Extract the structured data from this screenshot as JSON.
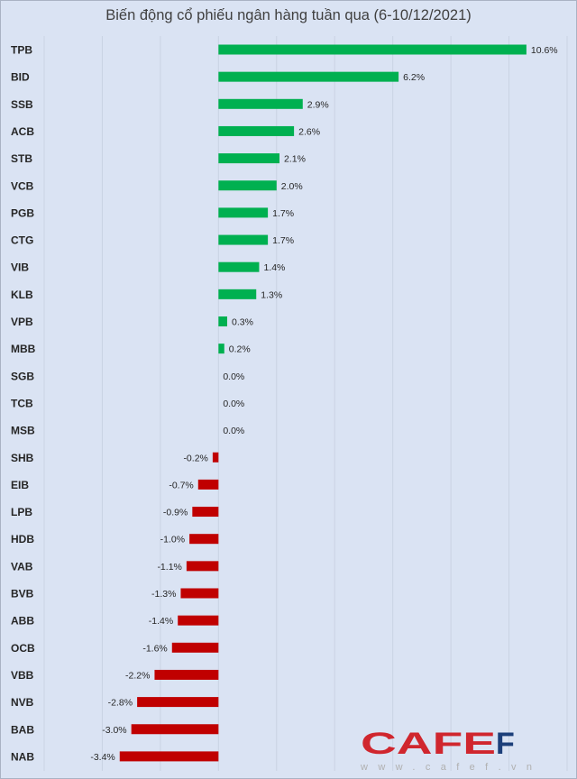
{
  "chart_data": {
    "type": "bar",
    "orientation": "horizontal",
    "title": "Biến động cổ phiếu ngân hàng tuần qua (6-10/12/2021)",
    "xlabel": "",
    "ylabel": "",
    "xlim": [
      -6,
      12
    ],
    "grid": true,
    "legend": "none",
    "categories": [
      "TPB",
      "BID",
      "SSB",
      "ACB",
      "STB",
      "VCB",
      "PGB",
      "CTG",
      "VIB",
      "KLB",
      "VPB",
      "MBB",
      "SGB",
      "TCB",
      "MSB",
      "SHB",
      "EIB",
      "LPB",
      "HDB",
      "VAB",
      "BVB",
      "ABB",
      "OCB",
      "VBB",
      "NVB",
      "BAB",
      "NAB"
    ],
    "values": [
      10.6,
      6.2,
      2.9,
      2.6,
      2.1,
      2.0,
      1.7,
      1.7,
      1.4,
      1.3,
      0.3,
      0.2,
      0.0,
      0.0,
      0.0,
      -0.2,
      -0.7,
      -0.9,
      -1.0,
      -1.1,
      -1.3,
      -1.4,
      -1.6,
      -2.2,
      -2.8,
      -3.0,
      -3.4
    ],
    "colors": {
      "positive": "#00b050",
      "negative": "#c00000",
      "grid": "#c9d3e3"
    }
  },
  "watermark": {
    "brand": "CAFEF",
    "url": "www.cafef.vn"
  }
}
